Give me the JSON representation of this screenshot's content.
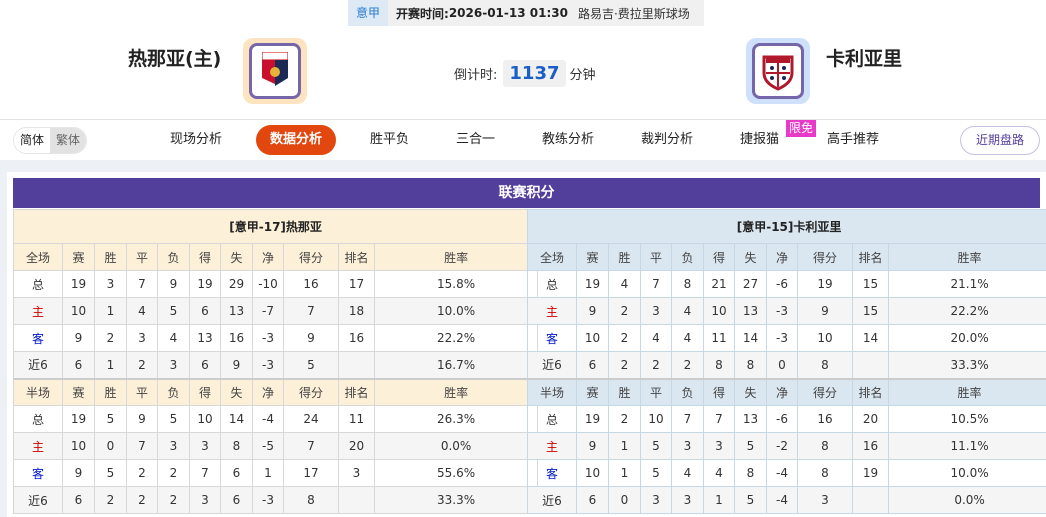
{
  "header": {
    "league": "意甲",
    "kickoff_label": "开赛时间:",
    "kickoff": "2026-01-13 01:30",
    "venue": "路易吉·费拉里斯球场"
  },
  "home": {
    "name": "热那亚(主)",
    "logo": "genoa-crest"
  },
  "away": {
    "name": "卡利亚里",
    "logo": "cagliari-crest"
  },
  "countdown": {
    "label": "倒计时:",
    "value": "1137",
    "unit": "分钟"
  },
  "nav": {
    "lang": [
      "简体",
      "繁体"
    ],
    "tabs": [
      "现场分析",
      "数据分析",
      "胜平负",
      "三合一",
      "教练分析",
      "裁判分析",
      "捷报猫",
      "高手推荐"
    ],
    "active": "数据分析",
    "badge": "限免",
    "recent": "近期盘路"
  },
  "colors": {
    "accent": "#523e9b",
    "active_tab": "#e2470f",
    "home_header": "#fdf0d8",
    "away_header": "#dbe7f0"
  },
  "standings": {
    "title": "联赛积分",
    "columns_full": [
      "全场",
      "赛",
      "胜",
      "平",
      "负",
      "得",
      "失",
      "净",
      "得分",
      "排名",
      "胜率"
    ],
    "columns_half": [
      "半场",
      "赛",
      "胜",
      "平",
      "负",
      "得",
      "失",
      "净",
      "得分",
      "排名",
      "胜率"
    ],
    "home": {
      "caption": "[意甲-17]热那亚",
      "full": [
        [
          "总",
          "19",
          "3",
          "7",
          "9",
          "19",
          "29",
          "-10",
          "16",
          "17",
          "15.8%"
        ],
        [
          "主",
          "10",
          "1",
          "4",
          "5",
          "6",
          "13",
          "-7",
          "7",
          "18",
          "10.0%"
        ],
        [
          "客",
          "9",
          "2",
          "3",
          "4",
          "13",
          "16",
          "-3",
          "9",
          "16",
          "22.2%"
        ],
        [
          "近6",
          "6",
          "1",
          "2",
          "3",
          "6",
          "9",
          "-3",
          "5",
          "",
          "16.7%"
        ]
      ],
      "half": [
        [
          "总",
          "19",
          "5",
          "9",
          "5",
          "10",
          "14",
          "-4",
          "24",
          "11",
          "26.3%"
        ],
        [
          "主",
          "10",
          "0",
          "7",
          "3",
          "3",
          "8",
          "-5",
          "7",
          "20",
          "0.0%"
        ],
        [
          "客",
          "9",
          "5",
          "2",
          "2",
          "7",
          "6",
          "1",
          "17",
          "3",
          "55.6%"
        ],
        [
          "近6",
          "6",
          "2",
          "2",
          "2",
          "3",
          "6",
          "-3",
          "8",
          "",
          "33.3%"
        ]
      ]
    },
    "away": {
      "caption": "[意甲-15]卡利亚里",
      "full": [
        [
          "总",
          "19",
          "4",
          "7",
          "8",
          "21",
          "27",
          "-6",
          "19",
          "15",
          "21.1%"
        ],
        [
          "主",
          "9",
          "2",
          "3",
          "4",
          "10",
          "13",
          "-3",
          "9",
          "15",
          "22.2%"
        ],
        [
          "客",
          "10",
          "2",
          "4",
          "4",
          "11",
          "14",
          "-3",
          "10",
          "14",
          "20.0%"
        ],
        [
          "近6",
          "6",
          "2",
          "2",
          "2",
          "8",
          "8",
          "0",
          "8",
          "",
          "33.3%"
        ]
      ],
      "half": [
        [
          "总",
          "19",
          "2",
          "10",
          "7",
          "7",
          "13",
          "-6",
          "16",
          "20",
          "10.5%"
        ],
        [
          "主",
          "9",
          "1",
          "5",
          "3",
          "3",
          "5",
          "-2",
          "8",
          "16",
          "11.1%"
        ],
        [
          "客",
          "10",
          "1",
          "5",
          "4",
          "4",
          "8",
          "-4",
          "8",
          "19",
          "10.0%"
        ],
        [
          "近6",
          "6",
          "0",
          "3",
          "3",
          "1",
          "5",
          "-4",
          "3",
          "",
          "0.0%"
        ]
      ]
    }
  }
}
